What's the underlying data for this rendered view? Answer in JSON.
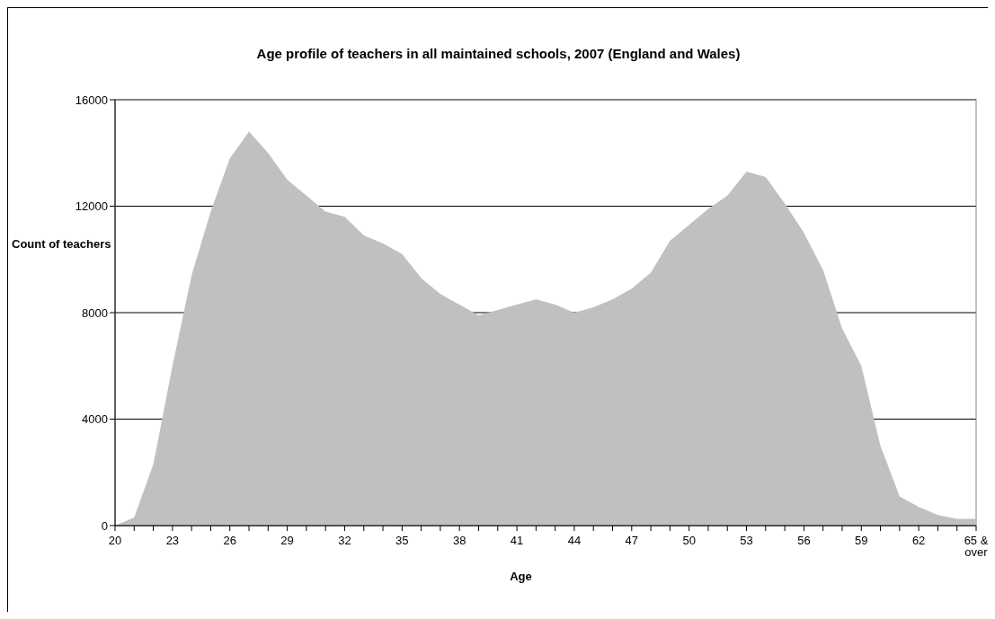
{
  "chart_data": {
    "type": "area",
    "title": "Age profile of teachers in all maintained schools, 2007 (England and Wales)",
    "xlabel": "Age",
    "ylabel": "Count of teachers",
    "categories": [
      "20",
      null,
      null,
      "23",
      null,
      null,
      "26",
      null,
      null,
      "29",
      null,
      null,
      "32",
      null,
      null,
      "35",
      null,
      null,
      "38",
      null,
      null,
      "41",
      null,
      null,
      "44",
      null,
      null,
      "47",
      null,
      null,
      "50",
      null,
      null,
      "53",
      null,
      null,
      "56",
      null,
      null,
      "59",
      null,
      null,
      "62",
      null,
      null,
      "65 & over"
    ],
    "values": [
      0,
      300,
      2300,
      6000,
      9400,
      11800,
      13800,
      14800,
      14000,
      13000,
      12400,
      11800,
      11600,
      10900,
      10600,
      10200,
      9300,
      8700,
      8300,
      7900,
      8100,
      8300,
      8500,
      8300,
      8000,
      8200,
      8500,
      8900,
      9500,
      10700,
      11300,
      11900,
      12400,
      13300,
      13100,
      12100,
      11000,
      9600,
      7400,
      6000,
      3000,
      1100,
      700,
      400,
      250,
      250
    ],
    "color": "#c0c0c0",
    "ylim": [
      0,
      16000
    ],
    "yticks": [
      0,
      4000,
      8000,
      12000,
      16000
    ],
    "grid": "y"
  }
}
